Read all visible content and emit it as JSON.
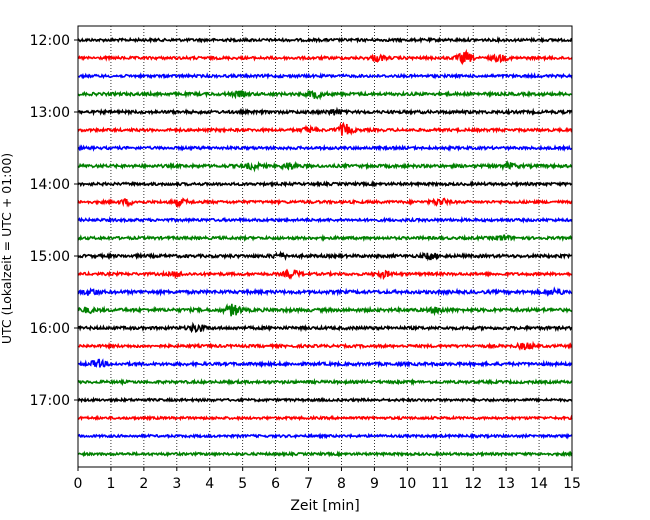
{
  "chart_data": {
    "type": "line",
    "xlabel": "Zeit  [min]",
    "ylabel": "UTC (Lokalzeit = UTC + 01:00)",
    "xlim": [
      0,
      15
    ],
    "x_ticks": [
      0,
      1,
      2,
      3,
      4,
      5,
      6,
      7,
      8,
      9,
      10,
      11,
      12,
      13,
      14,
      15
    ],
    "x_tick_labels": [
      "0",
      "1",
      "2",
      "3",
      "4",
      "5",
      "6",
      "7",
      "8",
      "9",
      "10",
      "11",
      "12",
      "13",
      "14",
      "15"
    ],
    "grid": "vertical dotted",
    "trace_interval_minutes": 15,
    "y_ticks": [
      {
        "label": "12:00",
        "trace_index": 0
      },
      {
        "label": "13:00",
        "trace_index": 4
      },
      {
        "label": "14:00",
        "trace_index": 8
      },
      {
        "label": "15:00",
        "trace_index": 12
      },
      {
        "label": "16:00",
        "trace_index": 16
      },
      {
        "label": "17:00",
        "trace_index": 20
      }
    ],
    "color_cycle": [
      "#000000",
      "#ff0000",
      "#0000ff",
      "#008000"
    ],
    "traces": [
      {
        "start": "12:00",
        "color": "#000000",
        "amplitude": 1.0,
        "events": []
      },
      {
        "start": "12:15",
        "color": "#ff0000",
        "amplitude": 1.0,
        "events": [
          {
            "t": 9.1,
            "a": 2.0
          },
          {
            "t": 11.75,
            "a": 4.0
          },
          {
            "t": 12.8,
            "a": 2.2
          }
        ]
      },
      {
        "start": "12:30",
        "color": "#0000ff",
        "amplitude": 1.0,
        "events": []
      },
      {
        "start": "12:45",
        "color": "#008000",
        "amplitude": 1.1,
        "events": [
          {
            "t": 7.2,
            "a": 2.6
          },
          {
            "t": 4.9,
            "a": 1.6
          }
        ]
      },
      {
        "start": "13:00",
        "color": "#000000",
        "amplitude": 1.1,
        "events": [
          {
            "t": 7.8,
            "a": 1.8
          }
        ]
      },
      {
        "start": "13:15",
        "color": "#ff0000",
        "amplitude": 1.0,
        "events": [
          {
            "t": 8.1,
            "a": 4.0
          },
          {
            "t": 7.0,
            "a": 1.8
          }
        ]
      },
      {
        "start": "13:30",
        "color": "#0000ff",
        "amplitude": 1.0,
        "events": []
      },
      {
        "start": "13:45",
        "color": "#008000",
        "amplitude": 1.1,
        "events": [
          {
            "t": 5.3,
            "a": 2.0
          },
          {
            "t": 6.4,
            "a": 2.0
          },
          {
            "t": 13.1,
            "a": 1.5
          }
        ]
      },
      {
        "start": "14:00",
        "color": "#000000",
        "amplitude": 1.0,
        "events": []
      },
      {
        "start": "14:15",
        "color": "#ff0000",
        "amplitude": 1.0,
        "events": [
          {
            "t": 1.5,
            "a": 1.8
          },
          {
            "t": 3.1,
            "a": 1.8
          },
          {
            "t": 11.0,
            "a": 2.4
          }
        ]
      },
      {
        "start": "14:30",
        "color": "#0000ff",
        "amplitude": 1.0,
        "events": []
      },
      {
        "start": "14:45",
        "color": "#008000",
        "amplitude": 1.0,
        "events": [
          {
            "t": 12.9,
            "a": 1.8
          }
        ]
      },
      {
        "start": "15:00",
        "color": "#000000",
        "amplitude": 1.1,
        "events": [
          {
            "t": 6.1,
            "a": 1.6
          },
          {
            "t": 10.7,
            "a": 2.0
          }
        ]
      },
      {
        "start": "15:15",
        "color": "#ff0000",
        "amplitude": 1.0,
        "events": [
          {
            "t": 6.5,
            "a": 2.6
          },
          {
            "t": 9.3,
            "a": 2.0
          },
          {
            "t": 3.0,
            "a": 1.6
          }
        ]
      },
      {
        "start": "15:30",
        "color": "#0000ff",
        "amplitude": 1.2,
        "events": [
          {
            "t": 0.4,
            "a": 2.0
          },
          {
            "t": 14.5,
            "a": 2.0
          }
        ]
      },
      {
        "start": "15:45",
        "color": "#008000",
        "amplitude": 1.2,
        "events": [
          {
            "t": 4.7,
            "a": 4.0
          },
          {
            "t": 0.3,
            "a": 1.6
          },
          {
            "t": 10.9,
            "a": 1.8
          }
        ]
      },
      {
        "start": "16:00",
        "color": "#000000",
        "amplitude": 1.1,
        "events": [
          {
            "t": 3.6,
            "a": 2.6
          }
        ]
      },
      {
        "start": "16:15",
        "color": "#ff0000",
        "amplitude": 1.0,
        "events": [
          {
            "t": 13.6,
            "a": 2.4
          }
        ]
      },
      {
        "start": "16:30",
        "color": "#0000ff",
        "amplitude": 1.1,
        "events": [
          {
            "t": 0.6,
            "a": 2.4
          }
        ]
      },
      {
        "start": "16:45",
        "color": "#008000",
        "amplitude": 1.0,
        "events": []
      },
      {
        "start": "17:00",
        "color": "#000000",
        "amplitude": 0.9,
        "events": []
      },
      {
        "start": "17:15",
        "color": "#ff0000",
        "amplitude": 0.9,
        "events": []
      },
      {
        "start": "17:30",
        "color": "#0000ff",
        "amplitude": 0.9,
        "events": []
      },
      {
        "start": "17:45",
        "color": "#008000",
        "amplitude": 0.9,
        "events": []
      }
    ]
  }
}
